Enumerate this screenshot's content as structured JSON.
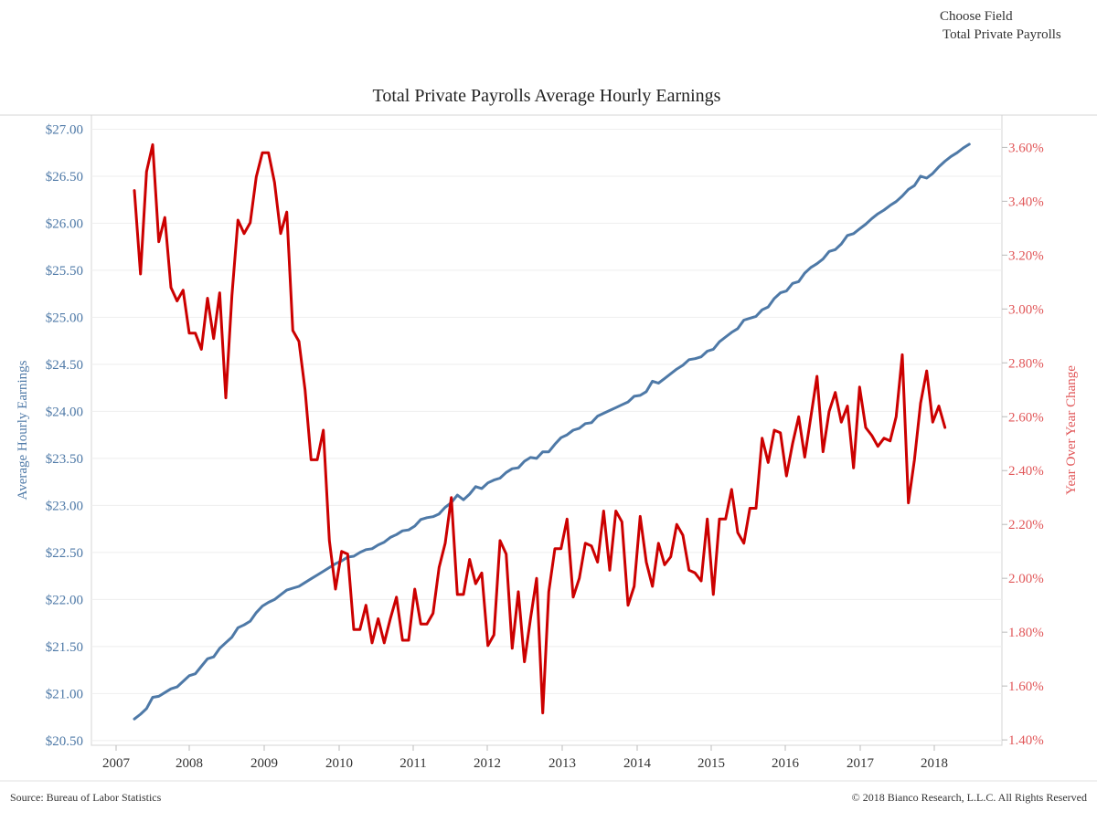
{
  "controls": {
    "choose_field_label": "Choose Field",
    "choose_field_value": "Total Private Payrolls"
  },
  "footer": {
    "source": "Source: Bureau of Labor Statistics",
    "copyright": "© 2018 Bianco Research, L.L.C. All Rights Reserved"
  },
  "colors": {
    "earnings": "#4e79a7",
    "yoy": "#cc0000",
    "left_axis_text": "#4e79a7",
    "right_axis_text": "#e15759"
  },
  "chart_data": {
    "type": "line",
    "title": "Total Private Payrolls Average Hourly Earnings",
    "xlabel": "",
    "x_tick_labels": [
      "2007",
      "2008",
      "2009",
      "2010",
      "2011",
      "2012",
      "2013",
      "2014",
      "2015",
      "2016",
      "2017",
      "2018"
    ],
    "y_left": {
      "label": "Average Hourly Earnings",
      "ylim": [
        20.45,
        27.15
      ],
      "ticks": [
        "$20.50",
        "$21.00",
        "$21.50",
        "$22.00",
        "$22.50",
        "$23.00",
        "$23.50",
        "$24.00",
        "$24.50",
        "$25.00",
        "$25.50",
        "$26.00",
        "$26.50",
        "$27.00"
      ],
      "tick_values": [
        20.5,
        21.0,
        21.5,
        22.0,
        22.5,
        23.0,
        23.5,
        24.0,
        24.5,
        25.0,
        25.5,
        26.0,
        26.5,
        27.0
      ]
    },
    "y_right": {
      "label": "Year Over Year Change",
      "ylim": [
        1.38,
        3.72
      ],
      "ticks": [
        "1.40%",
        "1.60%",
        "1.80%",
        "2.00%",
        "2.20%",
        "2.40%",
        "2.60%",
        "2.80%",
        "3.00%",
        "3.20%",
        "3.40%",
        "3.60%"
      ],
      "tick_values": [
        1.4,
        1.6,
        1.8,
        2.0,
        2.2,
        2.4,
        2.6,
        2.8,
        3.0,
        3.2,
        3.4,
        3.6
      ]
    },
    "grid": true,
    "x_start": "2007-03",
    "series": [
      {
        "name": "Average Hourly Earnings",
        "axis": "left",
        "values": [
          20.73,
          20.78,
          20.84,
          20.96,
          20.97,
          21.01,
          21.05,
          21.07,
          21.13,
          21.19,
          21.21,
          21.29,
          21.37,
          21.39,
          21.48,
          21.54,
          21.6,
          21.7,
          21.73,
          21.77,
          21.86,
          21.93,
          21.97,
          22.0,
          22.05,
          22.1,
          22.12,
          22.14,
          22.18,
          22.22,
          22.26,
          22.3,
          22.34,
          22.38,
          22.41,
          22.45,
          22.46,
          22.5,
          22.53,
          22.54,
          22.58,
          22.61,
          22.66,
          22.69,
          22.73,
          22.74,
          22.78,
          22.85,
          22.87,
          22.88,
          22.91,
          22.98,
          23.03,
          23.11,
          23.06,
          23.12,
          23.2,
          23.18,
          23.24,
          23.27,
          23.29,
          23.35,
          23.39,
          23.4,
          23.47,
          23.51,
          23.5,
          23.57,
          23.57,
          23.65,
          23.72,
          23.75,
          23.8,
          23.82,
          23.87,
          23.88,
          23.95,
          23.98,
          24.01,
          24.04,
          24.07,
          24.1,
          24.16,
          24.17,
          24.21,
          24.32,
          24.3,
          24.35,
          24.4,
          24.45,
          24.49,
          24.55,
          24.56,
          24.58,
          24.64,
          24.66,
          24.74,
          24.79,
          24.84,
          24.88,
          24.97,
          24.99,
          25.01,
          25.08,
          25.11,
          25.2,
          25.26,
          25.28,
          25.36,
          25.38,
          25.47,
          25.53,
          25.57,
          25.62,
          25.7,
          25.72,
          25.78,
          25.87,
          25.89,
          25.94,
          25.99,
          26.05,
          26.1,
          26.14,
          26.19,
          26.23,
          26.29,
          26.36,
          26.4,
          26.5,
          26.48,
          26.53,
          26.6,
          26.66,
          26.71,
          26.75,
          26.8,
          26.84
        ]
      },
      {
        "name": "Year Over Year Change",
        "axis": "right",
        "values": [
          3.44,
          3.13,
          3.51,
          3.61,
          3.25,
          3.34,
          3.08,
          3.03,
          3.07,
          2.91,
          2.91,
          2.85,
          3.04,
          2.89,
          3.06,
          2.67,
          3.05,
          3.33,
          3.28,
          3.32,
          3.49,
          3.58,
          3.58,
          3.47,
          3.28,
          3.36,
          2.92,
          2.88,
          2.7,
          2.44,
          2.44,
          2.55,
          2.14,
          1.96,
          2.1,
          2.09,
          1.81,
          1.81,
          1.9,
          1.76,
          1.85,
          1.76,
          1.85,
          1.93,
          1.77,
          1.77,
          1.96,
          1.83,
          1.83,
          1.87,
          2.04,
          2.13,
          2.3,
          1.94,
          1.94,
          2.07,
          1.98,
          2.02,
          1.75,
          1.79,
          2.14,
          2.09,
          1.74,
          1.95,
          1.69,
          1.85,
          2.0,
          1.5,
          1.95,
          2.11,
          2.11,
          2.22,
          1.93,
          2.0,
          2.13,
          2.12,
          2.06,
          2.25,
          2.03,
          2.25,
          2.21,
          1.9,
          1.97,
          2.23,
          2.06,
          1.97,
          2.13,
          2.05,
          2.08,
          2.2,
          2.16,
          2.03,
          2.02,
          1.99,
          2.22,
          1.94,
          2.22,
          2.22,
          2.33,
          2.17,
          2.13,
          2.26,
          2.26,
          2.52,
          2.43,
          2.55,
          2.54,
          2.38,
          2.5,
          2.6,
          2.45,
          2.6,
          2.75,
          2.47,
          2.62,
          2.69,
          2.58,
          2.64,
          2.41,
          2.71,
          2.56,
          2.53,
          2.49,
          2.52,
          2.51,
          2.6,
          2.83,
          2.28,
          2.44,
          2.65,
          2.77,
          2.58,
          2.64,
          2.56
        ]
      }
    ]
  }
}
